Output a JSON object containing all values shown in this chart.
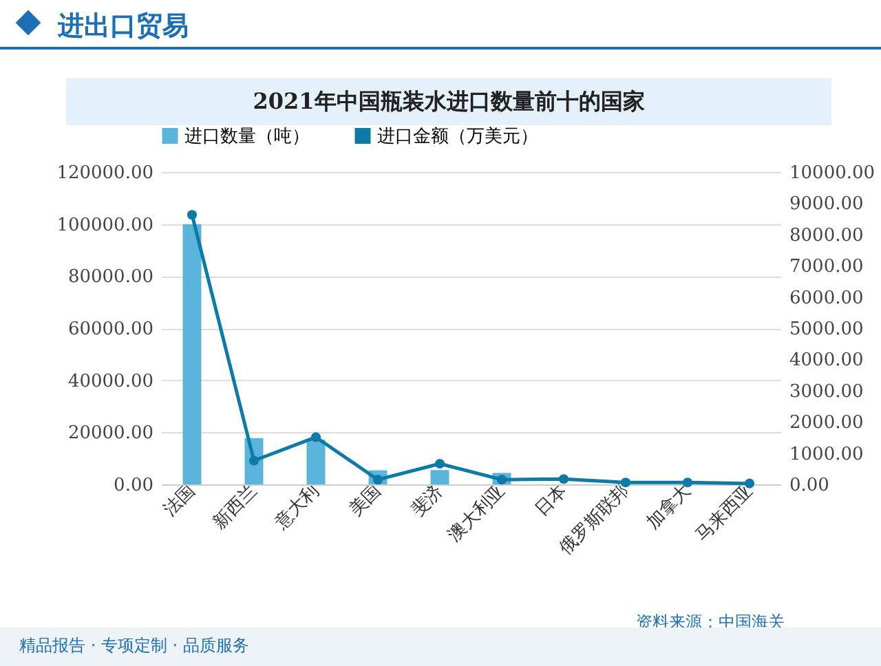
{
  "chart_data": {
    "type": "bar",
    "title": "2021年中国瓶装水进口数量前十的国家",
    "categories": [
      "法国",
      "新西兰",
      "意大利",
      "美国",
      "斐济",
      "澳大利亚",
      "日本",
      "俄罗斯联邦",
      "加拿大",
      "马来西亚"
    ],
    "series": [
      {
        "name": "进口数量（吨）",
        "color": "#5bb5db",
        "values": [
          100000,
          17800,
          17200,
          5400,
          5500,
          4400,
          null,
          null,
          null,
          null
        ]
      },
      {
        "name": "进口金额（万美元）",
        "type": "line",
        "axis": "y2",
        "color": "#0e7ba6",
        "values": [
          8630,
          760,
          1510,
          150,
          660,
          150,
          170,
          60,
          60,
          30
        ]
      }
    ],
    "ylim": [
      0,
      120000
    ],
    "yticks": [
      {
        "value": 0,
        "label": "0.00"
      },
      {
        "value": 20000,
        "label": "20000.00"
      },
      {
        "value": 40000,
        "label": "40000.00"
      },
      {
        "value": 60000,
        "label": "60000.00"
      },
      {
        "value": 80000,
        "label": "80000.00"
      },
      {
        "value": 100000,
        "label": "100000.00"
      },
      {
        "value": 120000,
        "label": "120000.00"
      }
    ],
    "y2lim": [
      0,
      10000
    ],
    "y2ticks": [
      {
        "value": 0,
        "label": "0.00"
      },
      {
        "value": 1000,
        "label": "1000.00"
      },
      {
        "value": 2000,
        "label": "2000.00"
      },
      {
        "value": 3000,
        "label": "3000.00"
      },
      {
        "value": 4000,
        "label": "4000.00"
      },
      {
        "value": 5000,
        "label": "5000.00"
      },
      {
        "value": 6000,
        "label": "6000.00"
      },
      {
        "value": 7000,
        "label": "7000.00"
      },
      {
        "value": 8000,
        "label": "8000.00"
      },
      {
        "value": 9000,
        "label": "9000.00"
      },
      {
        "value": 10000,
        "label": "10000.00"
      }
    ],
    "grid": "y",
    "legend": "top",
    "marker": "circle",
    "annotations": [
      "进出口贸易",
      "资料来源：中国海关",
      "精品报告 · 专项定制 · 品质服务"
    ]
  }
}
